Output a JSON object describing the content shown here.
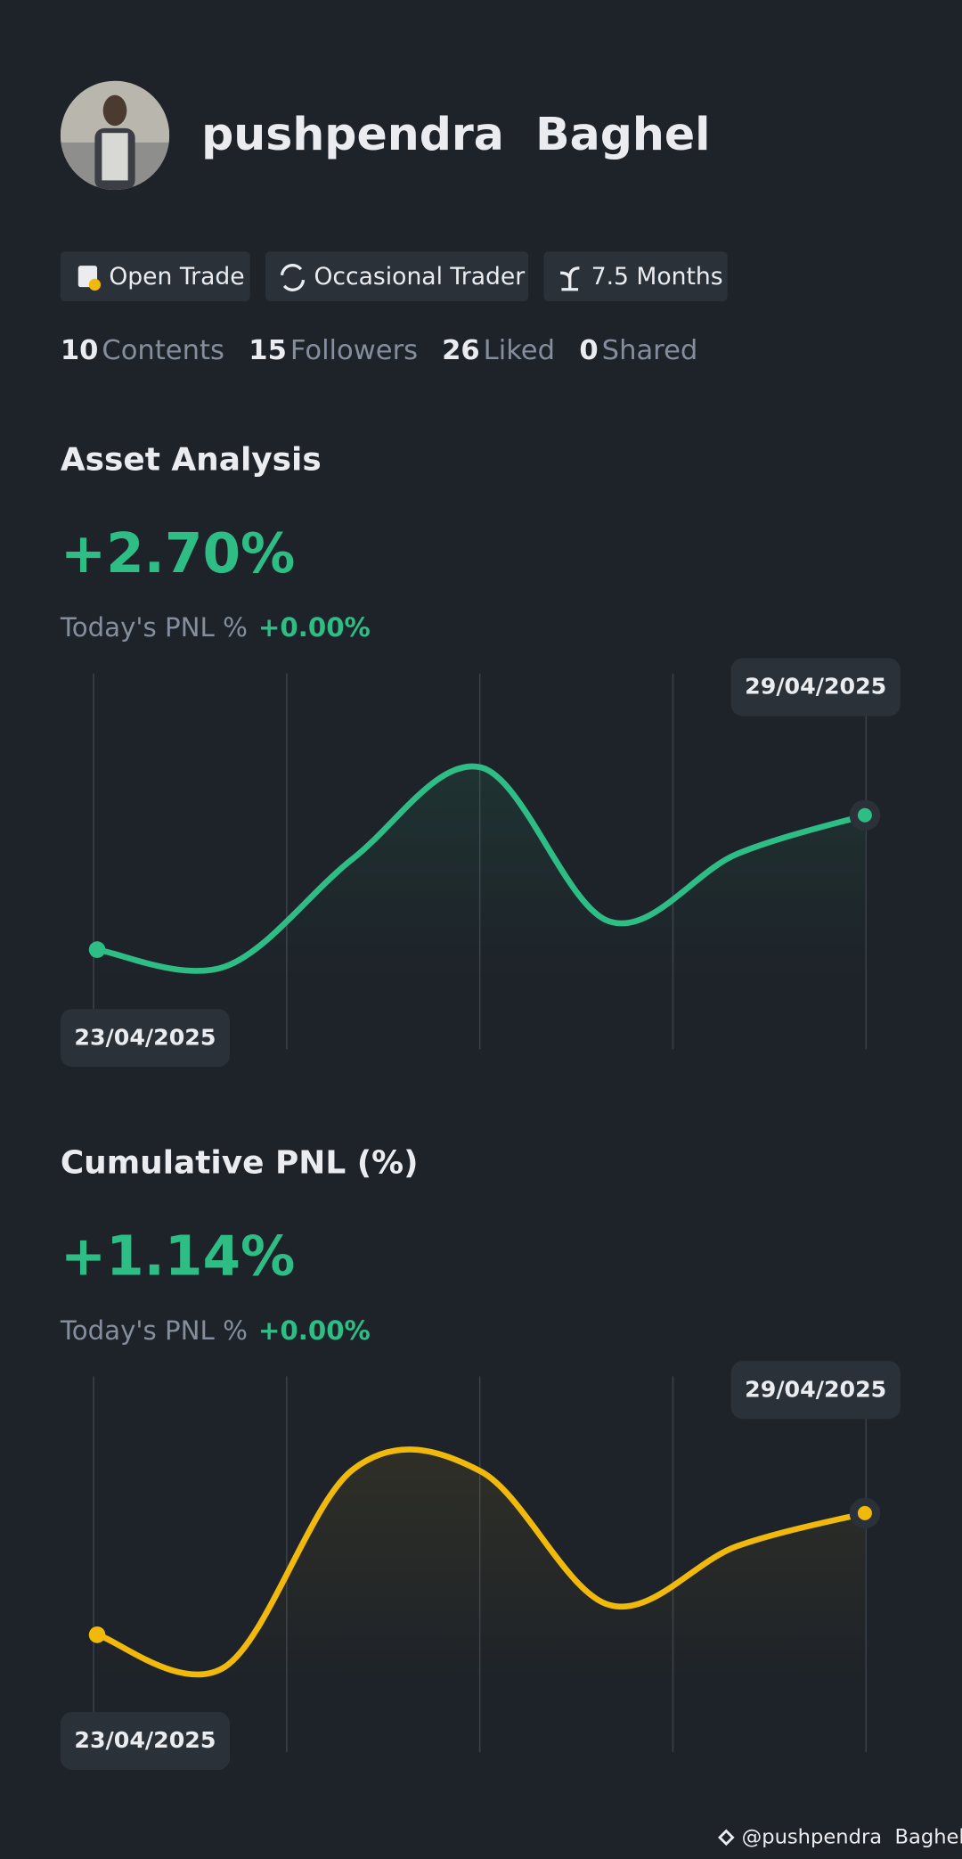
{
  "profile": {
    "name": "pushpendra  Baghel",
    "badges": [
      "Open Trade",
      "Occasional Trader",
      "7.5 Months"
    ],
    "stats": [
      {
        "value": 10,
        "label": "Contents"
      },
      {
        "value": 15,
        "label": "Followers"
      },
      {
        "value": 26,
        "label": "Liked"
      },
      {
        "value": 0,
        "label": "Shared"
      }
    ]
  },
  "chart_data": [
    {
      "type": "line",
      "title": "Asset Analysis",
      "headline": "+2.70%",
      "today_label": "Today's PNL %",
      "today_value": "+0.00%",
      "categories": [
        "23/04/2025",
        null,
        null,
        null,
        null,
        null,
        "29/04/2025"
      ],
      "series": [
        {
          "color": "#2ebd85",
          "values": [
            0,
            -0.34,
            1.83,
            3.66,
            0.57,
            1.92,
            2.7
          ]
        }
      ],
      "ylim": [
        -2,
        5.5
      ]
    },
    {
      "type": "line",
      "title": "Cumulative PNL (%)",
      "headline": "+1.14%",
      "today_label": "Today's PNL %",
      "today_value": "+0.00%",
      "categories": [
        "23/04/2025",
        null,
        null,
        null,
        null,
        null,
        "29/04/2025"
      ],
      "series": [
        {
          "color": "#f0b90b",
          "values": [
            0,
            -0.3,
            1.55,
            1.53,
            0.28,
            0.83,
            1.14
          ]
        }
      ],
      "ylim": [
        -1.1,
        2.4
      ]
    }
  ],
  "watermark": "@pushpendra  Baghel"
}
